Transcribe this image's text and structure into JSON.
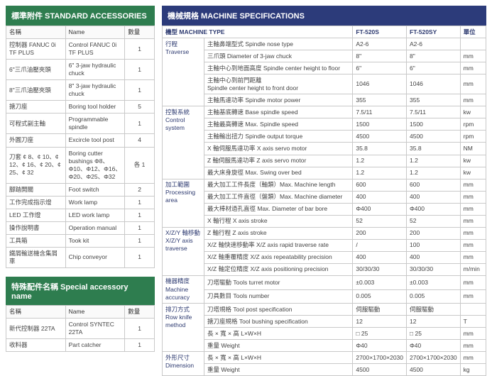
{
  "accessories": {
    "title": "標準附件 STANDARD ACCESSORIES",
    "cols": {
      "name_zh": "名稱",
      "name_en": "Name",
      "qty": "數量"
    },
    "rows": [
      {
        "zh": "控制器 FANUC 0i TF PLUS",
        "en": "Control FANUC 0i TF PLUS",
        "qty": "1"
      },
      {
        "zh": "6\"三爪油壓夾頭",
        "en": "6\" 3-jaw hydraulic chuck",
        "qty": "1"
      },
      {
        "zh": "8\"三爪油壓夾頭",
        "en": "8\" 3-jaw hydraulic chuck",
        "qty": "1"
      },
      {
        "zh": "搪刀座",
        "en": "Boring tool holder",
        "qty": "5"
      },
      {
        "zh": "可程式副主軸",
        "en": "Programmable spindle",
        "qty": "1"
      },
      {
        "zh": "外圓刀座",
        "en": "Excircle tool post",
        "qty": "4"
      },
      {
        "zh": "刀套 ¢ 8、¢ 10、¢ 12、¢ 16、¢ 20、¢ 25、¢ 32",
        "en": "Boring cutter bushings Φ8、Φ10、Φ12、Φ16、Φ20、Φ25、Φ32",
        "qty": "各 1"
      },
      {
        "zh": "腳踏開關",
        "en": "Foot switch",
        "qty": "2"
      },
      {
        "zh": "工作完成指示燈",
        "en": "Work lamp",
        "qty": "1"
      },
      {
        "zh": "LED 工作燈",
        "en": "LED work lamp",
        "qty": "1"
      },
      {
        "zh": "操作說明書",
        "en": "Operation manual",
        "qty": "1"
      },
      {
        "zh": "工具箱",
        "en": "Took kit",
        "qty": "1"
      },
      {
        "zh": "鐵屑輸送機含集屑車",
        "en": "Chip conveyor",
        "qty": "1"
      }
    ]
  },
  "special": {
    "title": "特殊配件名稱 Special accessory name",
    "cols": {
      "name_zh": "名稱",
      "name_en": "Name",
      "qty": "數量"
    },
    "rows": [
      {
        "zh": "新代控制器 22TA",
        "en": "Control SYNTEC 22TA",
        "qty": "1"
      },
      {
        "zh": "收料器",
        "en": "Part catcher",
        "qty": "1"
      }
    ]
  },
  "spec": {
    "title": "機械規格 MACHINE SPECIFICATIONS",
    "header": {
      "type": "機型 MACHINE TYPE",
      "col1": "FT-520S",
      "col2": "FT-520SY",
      "unit": "單位"
    },
    "groups": [
      {
        "cat": "行程\nTraverse",
        "rows": [
          {
            "label": "主軸鼻端型式 Spindle nose type",
            "v1": "A2-6",
            "v2": "A2-6",
            "u": ""
          },
          {
            "label": "三爪頭 Diameter of 3-jaw chuck",
            "v1": "8\"",
            "v2": "8\"",
            "u": "mm"
          },
          {
            "label": "主軸中心到地面高度 Spindle center height to floor",
            "v1": "6\"",
            "v2": "6\"",
            "u": "mm"
          },
          {
            "label": "主軸中心到前門距離\nSpindle center height to front door",
            "v1": "1046",
            "v2": "1046",
            "u": "mm"
          },
          {
            "label": "主軸馬達功率 Spindle motor power",
            "v1": "355",
            "v2": "355",
            "u": "mm"
          }
        ]
      },
      {
        "cat": "控製系統\nControl\nsystem",
        "rows": [
          {
            "label": "主軸基底轉速 Base spindle speed",
            "v1": "7.5/11",
            "v2": "7.5/11",
            "u": "kw"
          },
          {
            "label": "主軸最高轉速 Max. Spindle speed",
            "v1": "1500",
            "v2": "1500",
            "u": "rpm"
          },
          {
            "label": "主軸輸出扭力 Spindle output torque",
            "v1": "4500",
            "v2": "4500",
            "u": "rpm"
          },
          {
            "label": "X 軸伺服馬達功率 X axis servo motor",
            "v1": "35.8",
            "v2": "35.8",
            "u": "NM"
          },
          {
            "label": "Z 軸伺服馬達功率 Z axis servo motor",
            "v1": "1.2",
            "v2": "1.2",
            "u": "kw"
          },
          {
            "label": "最大床身旋徑 Max. Swing over bed",
            "v1": "1.2",
            "v2": "1.2",
            "u": "kw"
          }
        ]
      },
      {
        "cat": "加工範圍\nProcessing\narea",
        "rows": [
          {
            "label": "最大加工工件長度（軸類）Max. Machine length",
            "v1": "600",
            "v2": "600",
            "u": "mm"
          },
          {
            "label": "最大加工工件直徑（盤類）Max. Machine diameter",
            "v1": "400",
            "v2": "400",
            "u": "mm"
          },
          {
            "label": "最大棒材過孔直徑 Max. Diameter of bar bore",
            "v1": "Φ400",
            "v2": "Φ400",
            "u": "mm"
          },
          {
            "label": "X 軸行程 X axis stroke",
            "v1": "52",
            "v2": "52",
            "u": "mm"
          }
        ]
      },
      {
        "cat": "X/Z/Y 軸移動\nX/Z/Y axis\ntraverse",
        "rows": [
          {
            "label": "Z 軸行程 Z axis stroke",
            "v1": "200",
            "v2": "200",
            "u": "mm"
          },
          {
            "label": "X/Z 軸快速移動率 X/Z axis rapid traverse rate",
            "v1": "/",
            "v2": "100",
            "u": "mm"
          },
          {
            "label": "X/Z 軸重覆精度 X/Z axis repeatability precision",
            "v1": "400",
            "v2": "400",
            "u": "mm"
          },
          {
            "label": "X/Z 軸定位精度 X/Z axis positioning precision",
            "v1": "30/30/30",
            "v2": "30/30/30",
            "u": "m/min"
          }
        ]
      },
      {
        "cat": "機器精度\nMachine\naccuracy",
        "rows": [
          {
            "label": "刀塔驅動 Tools turret motor",
            "v1": "±0.003",
            "v2": "±0.003",
            "u": "mm"
          },
          {
            "label": "刀具數目 Tools number",
            "v1": "0.005",
            "v2": "0.005",
            "u": "mm"
          }
        ]
      },
      {
        "cat": "排刀方式\nRow knife\nmethod",
        "rows": [
          {
            "label": "刀塔規格 Tool post specification",
            "v1": "伺服驅動",
            "v2": "伺服驅動",
            "u": ""
          },
          {
            "label": "搪刀座規格 Tool bushing specification",
            "v1": "12",
            "v2": "12",
            "u": "T"
          },
          {
            "label": "長 × 寬 × 高 L×W×H",
            "v1": "□ 25",
            "v2": "□ 25",
            "u": "mm"
          },
          {
            "label": "重量 Weight",
            "v1": "Φ40",
            "v2": "Φ40",
            "u": "mm"
          }
        ]
      },
      {
        "cat": "外形尺寸\nDimension",
        "rows": [
          {
            "label": "長 × 寬 × 高 L×W×H",
            "v1": "2700×1700×2030",
            "v2": "2700×1700×2030",
            "u": "mm"
          },
          {
            "label": "重量 Weight",
            "v1": "4500",
            "v2": "4500",
            "u": "kg"
          }
        ]
      }
    ]
  }
}
